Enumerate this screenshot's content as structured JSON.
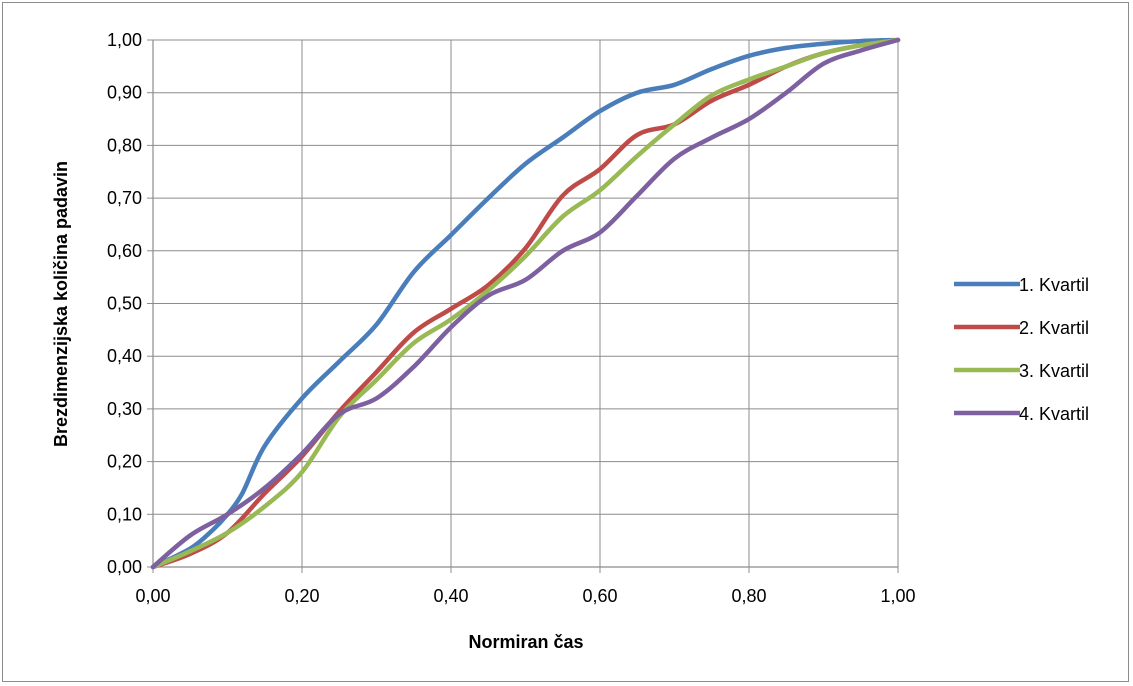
{
  "chart_data": {
    "type": "line",
    "title": "",
    "xlabel": "Normiran čas",
    "ylabel": "Brezdimenzijska količina padavin",
    "xlim": [
      0,
      1
    ],
    "ylim": [
      0,
      1
    ],
    "grid": true,
    "legend_position": "right",
    "x_ticks": [
      "0,00",
      "0,20",
      "0,40",
      "0,60",
      "0,80",
      "1,00"
    ],
    "x_tick_values": [
      0,
      0.2,
      0.4,
      0.6,
      0.8,
      1.0
    ],
    "y_ticks": [
      "0,00",
      "0,10",
      "0,20",
      "0,30",
      "0,40",
      "0,50",
      "0,60",
      "0,70",
      "0,80",
      "0,90",
      "1,00"
    ],
    "y_tick_values": [
      0,
      0.1,
      0.2,
      0.3,
      0.4,
      0.5,
      0.6,
      0.7,
      0.8,
      0.9,
      1.0
    ],
    "series": [
      {
        "name": "1. Kvartil",
        "color": "#4a7ebb",
        "x": [
          0,
          0.05,
          0.08,
          0.1,
          0.12,
          0.15,
          0.2,
          0.25,
          0.3,
          0.35,
          0.4,
          0.45,
          0.5,
          0.55,
          0.6,
          0.65,
          0.7,
          0.75,
          0.8,
          0.85,
          0.9,
          0.95,
          1.0
        ],
        "y": [
          0,
          0.035,
          0.07,
          0.1,
          0.14,
          0.23,
          0.32,
          0.39,
          0.46,
          0.56,
          0.63,
          0.7,
          0.765,
          0.815,
          0.865,
          0.9,
          0.915,
          0.945,
          0.97,
          0.985,
          0.993,
          0.998,
          1.0
        ]
      },
      {
        "name": "2. Kvartil",
        "color": "#be4b48",
        "x": [
          0,
          0.05,
          0.1,
          0.15,
          0.2,
          0.25,
          0.3,
          0.35,
          0.4,
          0.45,
          0.5,
          0.55,
          0.6,
          0.65,
          0.7,
          0.75,
          0.8,
          0.85,
          0.9,
          0.95,
          1.0
        ],
        "y": [
          0,
          0.025,
          0.065,
          0.14,
          0.21,
          0.295,
          0.37,
          0.445,
          0.49,
          0.535,
          0.605,
          0.705,
          0.755,
          0.82,
          0.84,
          0.885,
          0.915,
          0.95,
          0.975,
          0.99,
          1.0
        ]
      },
      {
        "name": "3. Kvartil",
        "color": "#98b954",
        "x": [
          0,
          0.05,
          0.1,
          0.15,
          0.2,
          0.25,
          0.3,
          0.35,
          0.4,
          0.45,
          0.5,
          0.55,
          0.6,
          0.65,
          0.7,
          0.75,
          0.8,
          0.85,
          0.9,
          0.95,
          1.0
        ],
        "y": [
          0,
          0.03,
          0.065,
          0.115,
          0.18,
          0.285,
          0.355,
          0.425,
          0.47,
          0.525,
          0.59,
          0.665,
          0.715,
          0.78,
          0.84,
          0.895,
          0.925,
          0.95,
          0.975,
          0.99,
          1.0
        ]
      },
      {
        "name": "4. Kvartil",
        "color": "#7d60a0",
        "x": [
          0,
          0.05,
          0.1,
          0.15,
          0.2,
          0.25,
          0.3,
          0.35,
          0.4,
          0.45,
          0.5,
          0.55,
          0.6,
          0.65,
          0.7,
          0.75,
          0.8,
          0.85,
          0.9,
          0.95,
          1.0
        ],
        "y": [
          0,
          0.06,
          0.1,
          0.15,
          0.215,
          0.29,
          0.32,
          0.38,
          0.455,
          0.515,
          0.545,
          0.6,
          0.635,
          0.705,
          0.775,
          0.815,
          0.85,
          0.9,
          0.955,
          0.98,
          1.0
        ]
      }
    ]
  }
}
